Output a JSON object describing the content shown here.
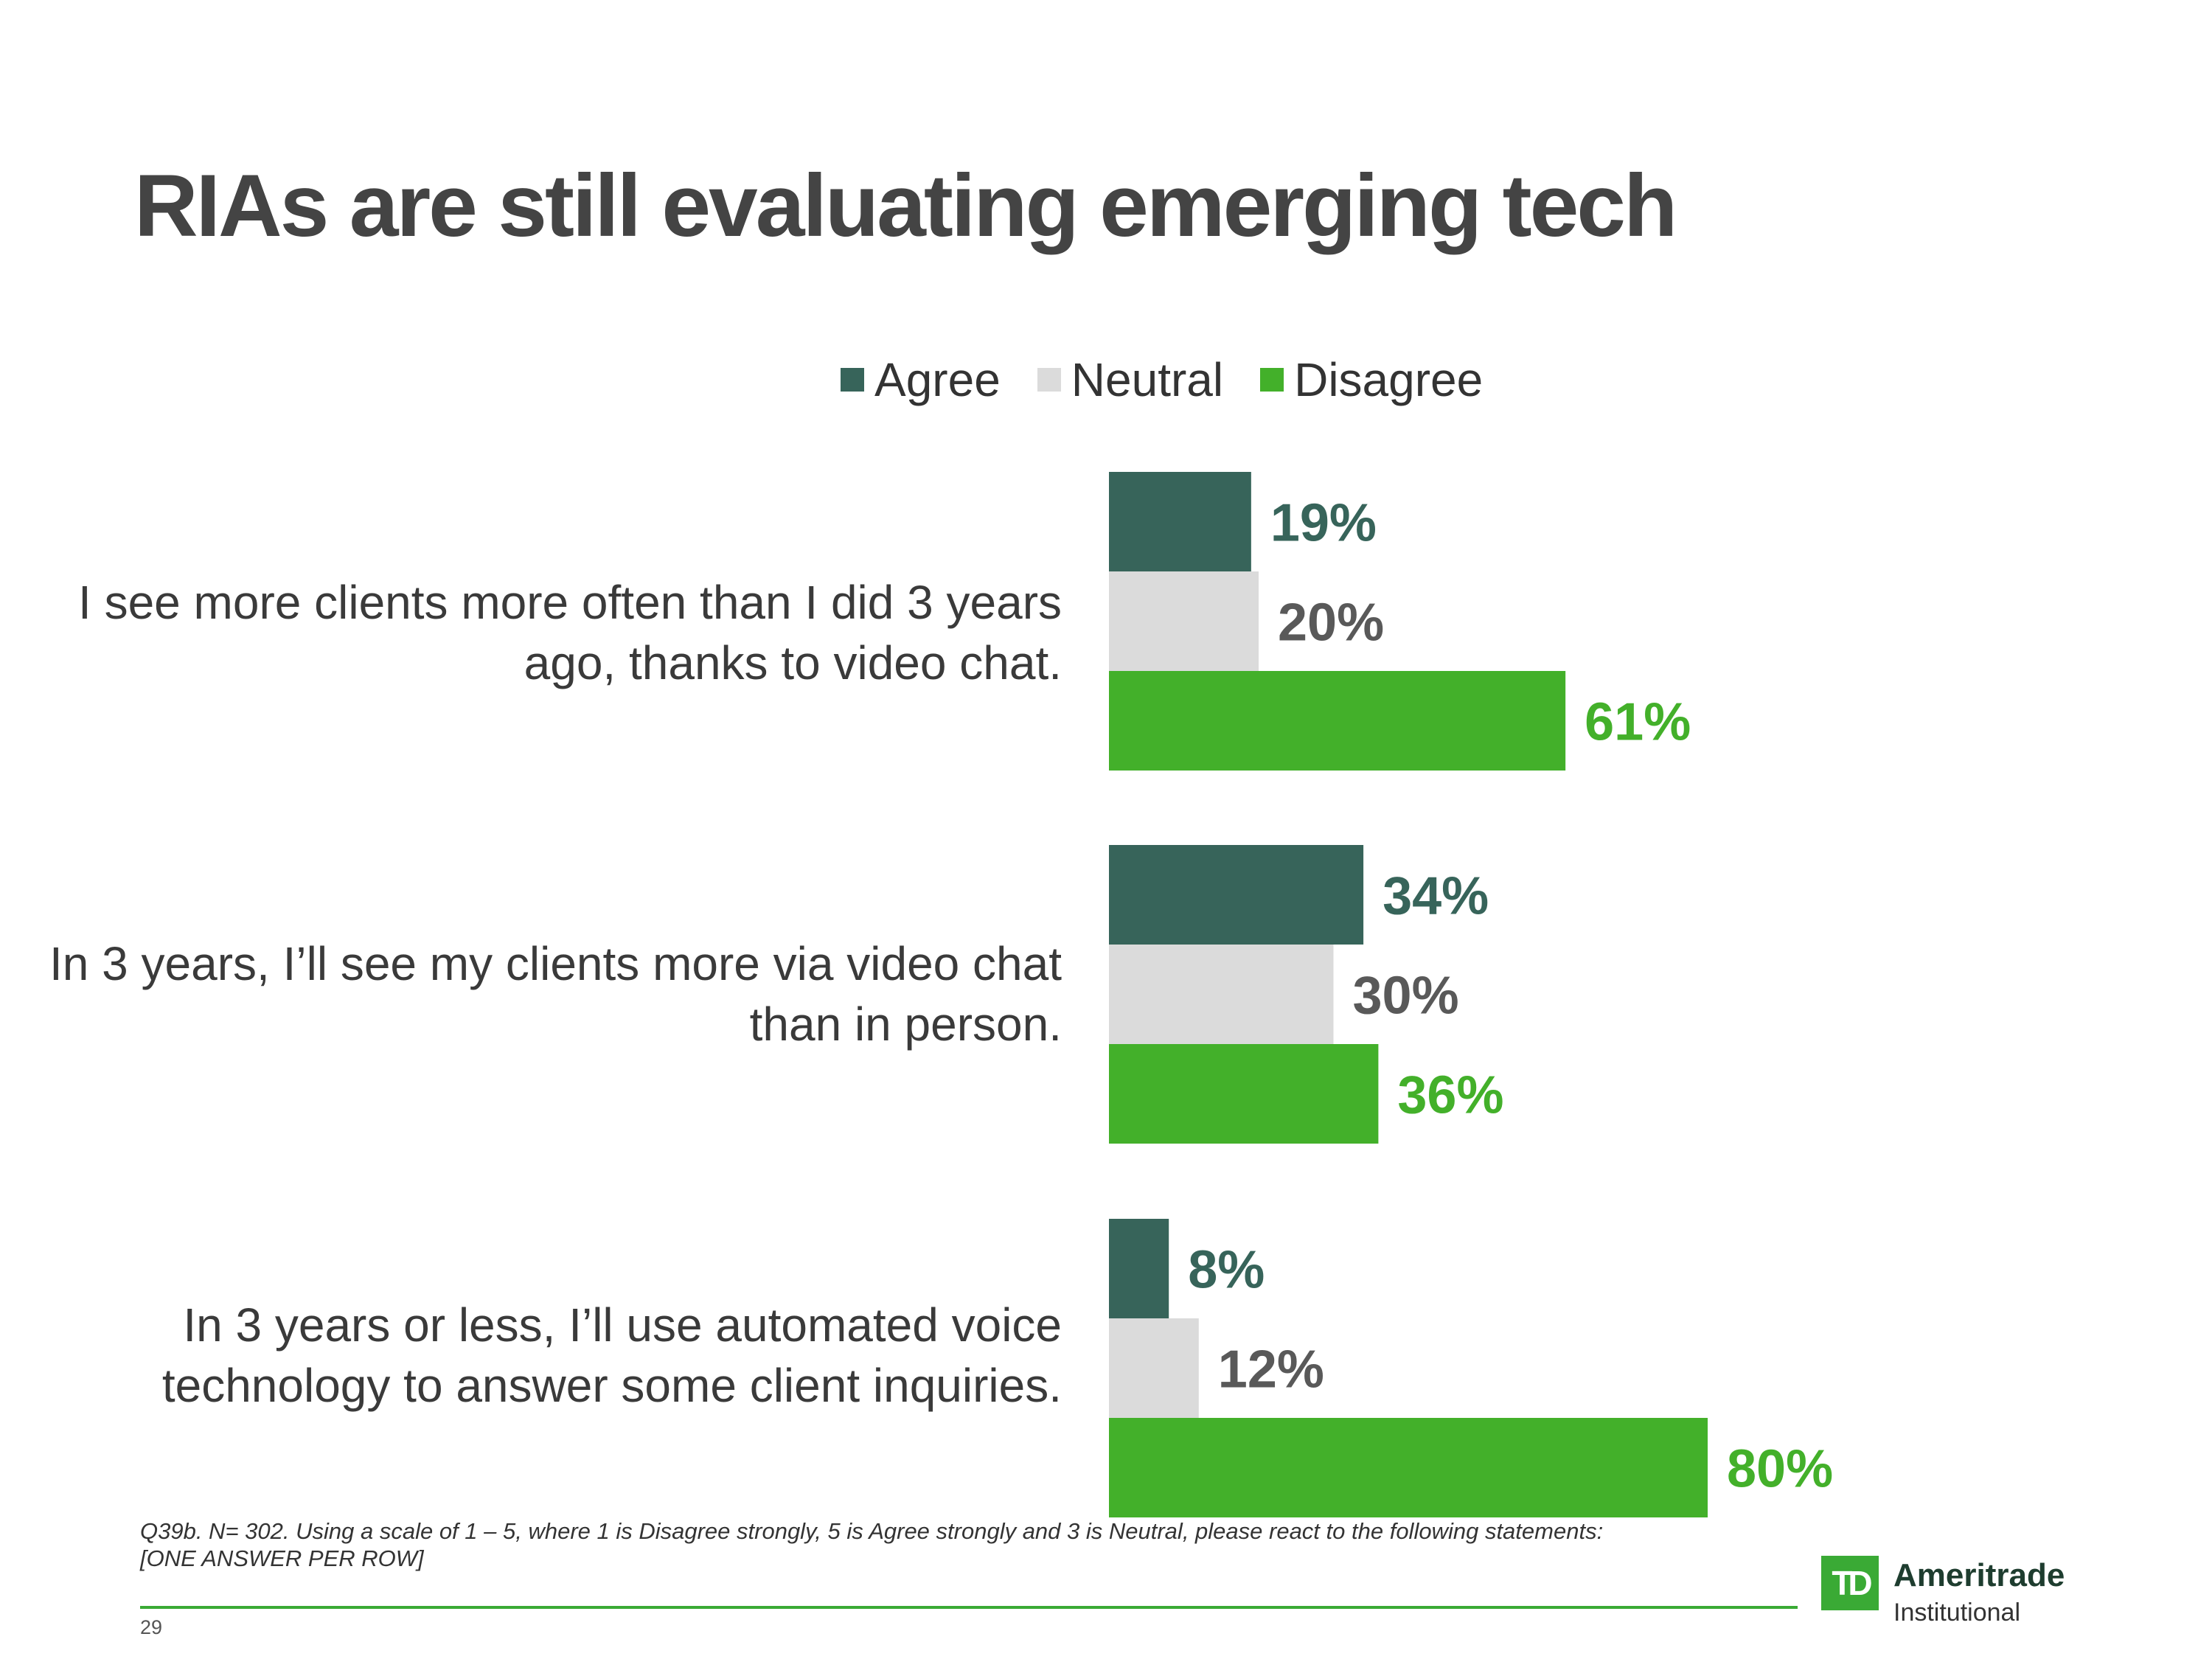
{
  "page": {
    "title": "RIAs are still evaluating emerging tech",
    "footnote": "Q39b. N= 302.  Using a scale of 1 – 5, where 1 is Disagree strongly, 5 is Agree strongly and 3 is Neutral, please react to the following statements: [ONE ANSWER PER ROW]",
    "page_number": "29",
    "logo": {
      "mark": "TD",
      "name": "Ameritrade",
      "sub": "Institutional"
    }
  },
  "chart_data": {
    "type": "bar",
    "orientation": "horizontal",
    "title": "",
    "xlabel": "",
    "ylabel": "",
    "legend_position": "top",
    "grid": false,
    "value_suffix": "%",
    "categories": [
      "I see more clients more often than I did 3 years ago, thanks to video chat.",
      "In 3 years, I’ll see my clients more via video chat than in person.",
      "In 3 years or less, I’ll use automated voice technology to answer some client inquiries."
    ],
    "series": [
      {
        "name": "Agree",
        "color": "#37645a",
        "label_color": "#37645a",
        "values": [
          19,
          34,
          8
        ]
      },
      {
        "name": "Neutral",
        "color": "#dbdbdb",
        "label_color": "#595959",
        "values": [
          20,
          30,
          12
        ]
      },
      {
        "name": "Disagree",
        "color": "#43b02a",
        "label_color": "#43b02a",
        "values": [
          61,
          36,
          80
        ]
      }
    ],
    "xlim": [
      0,
      100
    ]
  }
}
